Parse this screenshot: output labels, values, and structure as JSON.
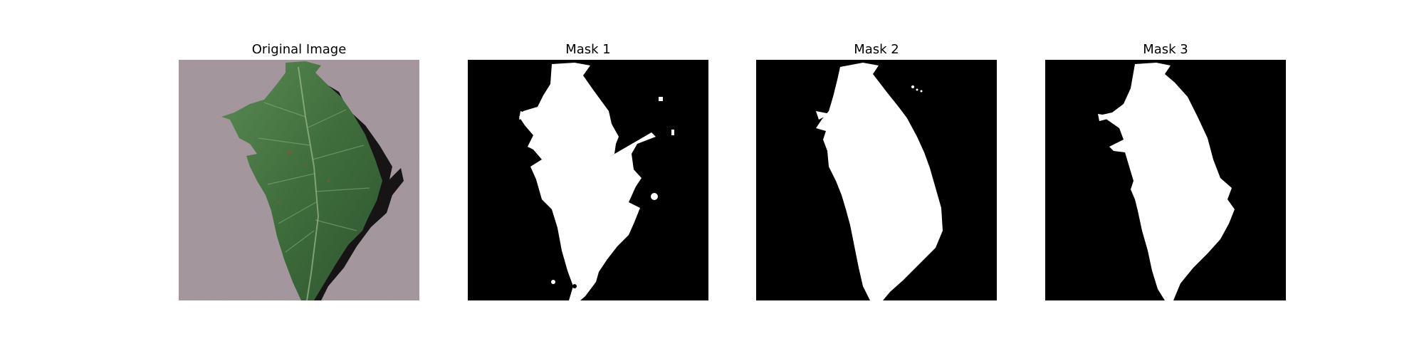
{
  "figure": {
    "panels": [
      {
        "title": "Original Image",
        "kind": "photo",
        "subject": "tomato-leaf-photo"
      },
      {
        "title": "Mask 1",
        "kind": "mask",
        "subject": "leaf-segmentation-mask"
      },
      {
        "title": "Mask 2",
        "kind": "mask",
        "subject": "leaf-segmentation-mask"
      },
      {
        "title": "Mask 3",
        "kind": "mask",
        "subject": "leaf-segmentation-mask"
      }
    ],
    "colors": {
      "page_bg": "#ffffff",
      "photo_bg": "#a89aa1",
      "leaf": "#3f6e3c",
      "leaf_shadow": "#161414",
      "mask_bg": "#000000",
      "mask_fg": "#ffffff"
    }
  }
}
